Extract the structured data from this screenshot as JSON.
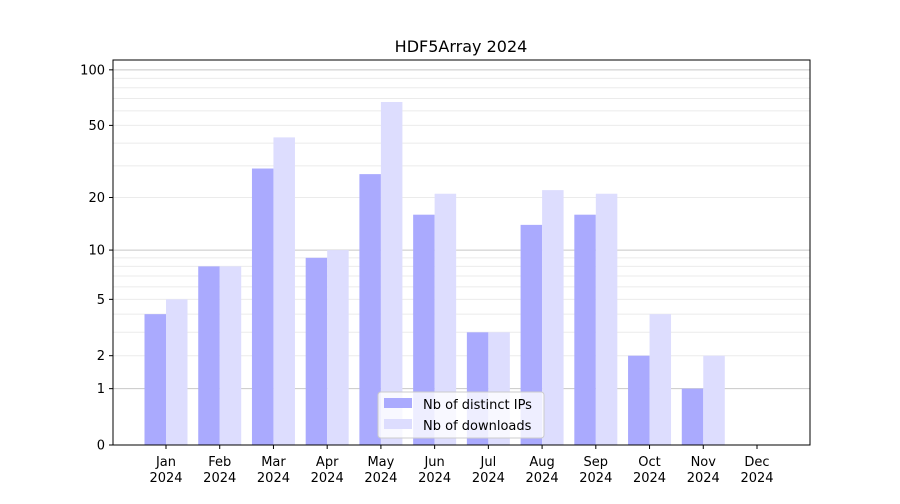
{
  "chart_data": {
    "type": "bar",
    "title": "HDF5Array 2024",
    "xlabel": "",
    "ylabel": "",
    "y_scale": "log(1+y)",
    "ylim": [
      0,
      113
    ],
    "grid": true,
    "legend_position": "bottom-center",
    "categories": [
      "Jan\n2024",
      "Feb\n2024",
      "Mar\n2024",
      "Apr\n2024",
      "May\n2024",
      "Jun\n2024",
      "Jul\n2024",
      "Aug\n2024",
      "Sep\n2024",
      "Oct\n2024",
      "Nov\n2024",
      "Dec\n2024"
    ],
    "y_ticks": [
      0,
      1,
      2,
      5,
      10,
      20,
      50,
      100
    ],
    "series": [
      {
        "name": "Nb of distinct IPs",
        "color": "#aaaafe",
        "values": [
          4,
          8,
          29,
          9,
          27,
          16,
          3,
          14,
          16,
          2,
          1,
          0
        ]
      },
      {
        "name": "Nb of downloads",
        "color": "#ddddfe",
        "values": [
          5,
          8,
          43,
          10,
          67,
          21,
          3,
          22,
          21,
          4,
          2,
          0
        ]
      }
    ]
  }
}
